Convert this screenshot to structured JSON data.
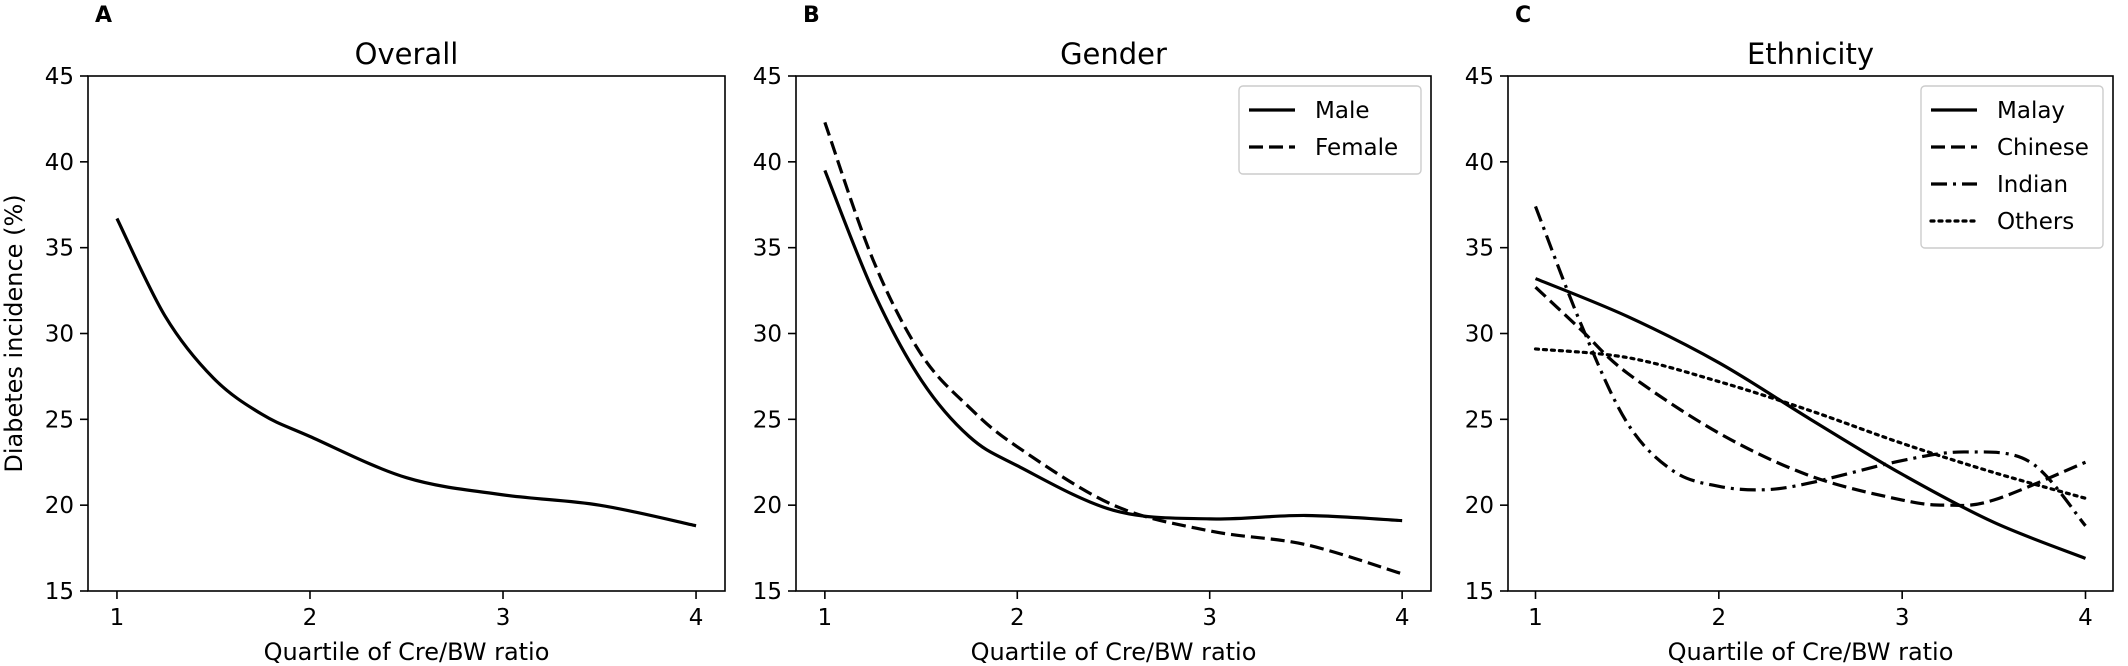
{
  "chart_data": [
    {
      "type": "line",
      "panel_letter": "A",
      "title": "Overall",
      "xlabel": "Quartile of Cre/BW ratio",
      "ylabel": "Diabetes incidence (%)",
      "xlim": [
        0.85,
        4.15
      ],
      "ylim": [
        15,
        45
      ],
      "xticks": [
        1,
        2,
        3,
        4
      ],
      "yticks": [
        15,
        20,
        25,
        30,
        35,
        40,
        45
      ],
      "legend": null,
      "series": [
        {
          "name": "",
          "dash": "solid",
          "points": [
            [
              1.0,
              36.7
            ],
            [
              1.25,
              31.0
            ],
            [
              1.5,
              27.4
            ],
            [
              1.75,
              25.3
            ],
            [
              2.0,
              24.0
            ],
            [
              2.5,
              21.6
            ],
            [
              3.0,
              20.6
            ],
            [
              3.5,
              20.0
            ],
            [
              4.0,
              18.8
            ]
          ]
        }
      ]
    },
    {
      "type": "line",
      "panel_letter": "B",
      "title": "Gender",
      "xlabel": "Quartile of Cre/BW ratio",
      "ylabel": "",
      "xlim": [
        0.85,
        4.15
      ],
      "ylim": [
        15,
        45
      ],
      "xticks": [
        1,
        2,
        3,
        4
      ],
      "yticks": [
        15,
        20,
        25,
        30,
        35,
        40,
        45
      ],
      "legend": "top-right",
      "series": [
        {
          "name": "Male",
          "dash": "solid",
          "points": [
            [
              1.0,
              39.5
            ],
            [
              1.25,
              32.5
            ],
            [
              1.5,
              27.3
            ],
            [
              1.75,
              24.0
            ],
            [
              2.0,
              22.3
            ],
            [
              2.5,
              19.7
            ],
            [
              3.0,
              19.2
            ],
            [
              3.5,
              19.4
            ],
            [
              4.0,
              19.1
            ]
          ]
        },
        {
          "name": "Female",
          "dash": "dashed",
          "points": [
            [
              1.0,
              42.3
            ],
            [
              1.25,
              34.3
            ],
            [
              1.5,
              28.8
            ],
            [
              1.75,
              25.7
            ],
            [
              2.0,
              23.4
            ],
            [
              2.5,
              20.0
            ],
            [
              3.0,
              18.5
            ],
            [
              3.5,
              17.7
            ],
            [
              4.0,
              16.0
            ]
          ]
        }
      ]
    },
    {
      "type": "line",
      "panel_letter": "C",
      "title": "Ethnicity",
      "xlabel": "Quartile of Cre/BW ratio",
      "ylabel": "",
      "xlim": [
        0.85,
        4.15
      ],
      "ylim": [
        15,
        45
      ],
      "xticks": [
        1,
        2,
        3,
        4
      ],
      "yticks": [
        15,
        20,
        25,
        30,
        35,
        40,
        45
      ],
      "legend": "top-right",
      "series": [
        {
          "name": "Malay",
          "dash": "solid",
          "points": [
            [
              1.0,
              33.2
            ],
            [
              1.5,
              31.0
            ],
            [
              2.0,
              28.3
            ],
            [
              2.5,
              25.0
            ],
            [
              3.0,
              21.8
            ],
            [
              3.5,
              19.0
            ],
            [
              4.0,
              16.9
            ]
          ]
        },
        {
          "name": "Chinese",
          "dash": "dashed",
          "points": [
            [
              1.0,
              32.7
            ],
            [
              1.25,
              30.2
            ],
            [
              1.5,
              27.7
            ],
            [
              2.0,
              24.2
            ],
            [
              2.5,
              21.7
            ],
            [
              3.0,
              20.3
            ],
            [
              3.25,
              20.0
            ],
            [
              3.5,
              20.3
            ],
            [
              4.0,
              22.5
            ]
          ]
        },
        {
          "name": "Indian",
          "dash": "dashdot",
          "points": [
            [
              1.0,
              37.4
            ],
            [
              1.25,
              30.5
            ],
            [
              1.5,
              24.8
            ],
            [
              1.75,
              22.0
            ],
            [
              2.0,
              21.1
            ],
            [
              2.25,
              20.9
            ],
            [
              2.5,
              21.3
            ],
            [
              3.0,
              22.6
            ],
            [
              3.35,
              23.1
            ],
            [
              3.7,
              22.5
            ],
            [
              4.0,
              18.8
            ]
          ]
        },
        {
          "name": "Others",
          "dash": "dotted",
          "points": [
            [
              1.0,
              29.1
            ],
            [
              1.5,
              28.6
            ],
            [
              2.0,
              27.2
            ],
            [
              2.5,
              25.5
            ],
            [
              3.0,
              23.6
            ],
            [
              3.5,
              21.9
            ],
            [
              4.0,
              20.4
            ]
          ]
        }
      ]
    }
  ]
}
